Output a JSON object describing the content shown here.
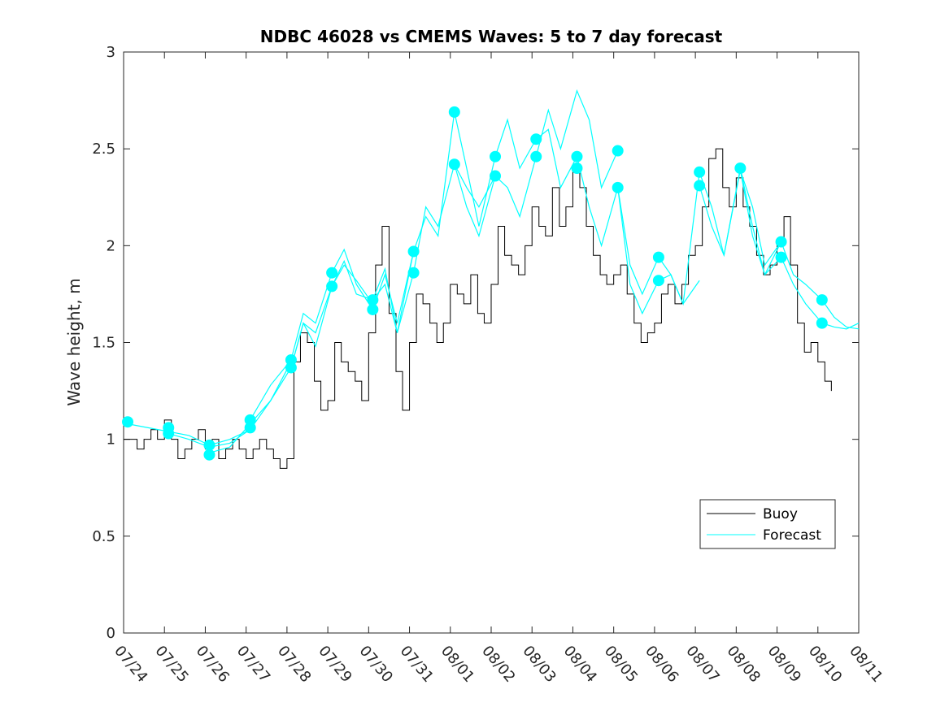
{
  "chart_data": {
    "type": "line",
    "title": "NDBC 46028 vs CMEMS Waves: 5 to 7 day forecast",
    "xlabel": "",
    "ylabel": "Wave height, m",
    "x_tick_labels": [
      "07/24",
      "07/25",
      "07/26",
      "07/27",
      "07/28",
      "07/29",
      "07/30",
      "07/31",
      "08/01",
      "08/02",
      "08/03",
      "08/04",
      "08/05",
      "08/06",
      "08/07",
      "08/08",
      "08/09",
      "08/10",
      "08/11"
    ],
    "x_tick_positions_days": [
      0,
      1,
      2,
      3,
      4,
      5,
      6,
      7,
      8,
      9,
      10,
      11,
      12,
      13,
      14,
      15,
      16,
      17,
      18
    ],
    "x_unit": "days since 07/24",
    "xlim": [
      0,
      18
    ],
    "ylim": [
      0,
      3
    ],
    "y_ticks": [
      0,
      0.5,
      1,
      1.5,
      2,
      2.5,
      3
    ],
    "y_tick_labels": [
      "0",
      "0.5",
      "1",
      "1.5",
      "2",
      "2.5",
      "3"
    ],
    "grid": false,
    "legend": {
      "placement": "bottom-right",
      "entries": [
        "Buoy",
        "Forecast"
      ]
    },
    "colors": {
      "buoy": "#000000",
      "forecast": "#00FFFF",
      "axis": "#262626"
    },
    "series": [
      {
        "name": "Buoy",
        "x": [
          0,
          0.17,
          0.33,
          0.5,
          0.67,
          0.83,
          1.0,
          1.17,
          1.33,
          1.5,
          1.67,
          1.83,
          2.0,
          2.17,
          2.33,
          2.5,
          2.67,
          2.83,
          3.0,
          3.17,
          3.33,
          3.5,
          3.67,
          3.83,
          4.0,
          4.17,
          4.33,
          4.5,
          4.67,
          4.83,
          5.0,
          5.17,
          5.33,
          5.5,
          5.67,
          5.83,
          6.0,
          6.17,
          6.33,
          6.5,
          6.67,
          6.83,
          7.0,
          7.17,
          7.33,
          7.5,
          7.67,
          7.83,
          8.0,
          8.17,
          8.33,
          8.5,
          8.67,
          8.83,
          9.0,
          9.17,
          9.33,
          9.5,
          9.67,
          9.83,
          10.0,
          10.17,
          10.33,
          10.5,
          10.67,
          10.83,
          11.0,
          11.17,
          11.33,
          11.5,
          11.67,
          11.83,
          12.0,
          12.17,
          12.33,
          12.5,
          12.67,
          12.83,
          13.0,
          13.17,
          13.33,
          13.5,
          13.67,
          13.83,
          14.0,
          14.17,
          14.33,
          14.5,
          14.67,
          14.83,
          15.0,
          15.17,
          15.33,
          15.5,
          15.67,
          15.83,
          16.0,
          16.17,
          16.33,
          16.5,
          16.67,
          16.83,
          17.0,
          17.17,
          17.33
        ],
        "values": [
          1.0,
          1.0,
          0.95,
          1.0,
          1.05,
          1.0,
          1.1,
          1.0,
          0.9,
          0.95,
          1.0,
          1.05,
          0.95,
          1.0,
          0.9,
          0.95,
          1.0,
          0.95,
          0.9,
          0.95,
          1.0,
          0.95,
          0.9,
          0.85,
          0.9,
          1.4,
          1.55,
          1.5,
          1.3,
          1.15,
          1.2,
          1.5,
          1.4,
          1.35,
          1.3,
          1.2,
          1.55,
          1.9,
          2.1,
          1.65,
          1.35,
          1.15,
          1.5,
          1.75,
          1.7,
          1.6,
          1.5,
          1.6,
          1.8,
          1.75,
          1.7,
          1.85,
          1.65,
          1.6,
          1.8,
          2.1,
          1.95,
          1.9,
          1.85,
          2.0,
          2.2,
          2.1,
          2.05,
          2.3,
          2.1,
          2.2,
          2.4,
          2.3,
          2.1,
          1.95,
          1.85,
          1.8,
          1.85,
          1.9,
          1.75,
          1.6,
          1.5,
          1.55,
          1.6,
          1.75,
          1.8,
          1.7,
          1.8,
          1.95,
          2.0,
          2.2,
          2.45,
          2.5,
          2.3,
          2.2,
          2.35,
          2.2,
          2.1,
          1.95,
          1.85,
          1.9,
          2.0,
          2.15,
          1.9,
          1.6,
          1.45,
          1.5,
          1.4,
          1.3,
          1.25
        ]
      },
      {
        "name": "Forecast",
        "runs": [
          {
            "x": [
              0.1,
              0.6,
              1.1,
              1.6,
              2.1,
              2.6,
              3.1
            ],
            "values": [
              1.08,
              1.06,
              1.04,
              1.02,
              0.97,
              1.0,
              1.05
            ]
          },
          {
            "x": [
              1.1,
              1.6,
              2.1,
              2.6,
              3.1,
              3.6,
              4.1
            ],
            "values": [
              1.03,
              1.0,
              0.96,
              0.98,
              1.05,
              1.2,
              1.4
            ]
          },
          {
            "x": [
              2.1,
              2.6,
              3.1,
              3.6,
              4.1,
              4.4,
              4.7,
              5.1,
              5.4,
              5.7,
              6.1
            ],
            "values": [
              0.93,
              0.96,
              1.08,
              1.2,
              1.37,
              1.6,
              1.55,
              1.79,
              1.9,
              1.82,
              1.7
            ]
          },
          {
            "x": [
              3.1,
              3.6,
              4.1,
              4.4,
              4.7,
              5.1,
              5.4,
              5.7,
              6.1,
              6.4,
              6.7,
              7.1
            ],
            "values": [
              1.1,
              1.28,
              1.41,
              1.65,
              1.6,
              1.86,
              1.98,
              1.8,
              1.67,
              1.85,
              1.6,
              1.97
            ]
          },
          {
            "x": [
              4.1,
              4.4,
              4.7,
              5.1,
              5.4,
              5.7,
              6.1,
              6.4,
              6.7,
              7.1,
              7.4,
              7.7,
              8.1,
              8.4,
              8.7,
              9.1
            ],
            "values": [
              1.37,
              1.6,
              1.48,
              1.79,
              1.92,
              1.75,
              1.72,
              1.88,
              1.55,
              1.86,
              2.2,
              2.1,
              2.42,
              2.3,
              2.2,
              2.36
            ]
          },
          {
            "x": [
              6.1,
              6.4,
              6.7,
              7.1,
              7.4,
              7.7,
              8.1,
              8.4,
              8.7,
              9.1,
              9.4,
              9.7,
              10.1,
              10.4,
              10.7,
              11.1
            ],
            "values": [
              1.72,
              1.8,
              1.55,
              1.97,
              2.15,
              2.05,
              2.69,
              2.4,
              2.1,
              2.46,
              2.65,
              2.4,
              2.55,
              2.6,
              2.3,
              2.46
            ]
          },
          {
            "x": [
              8.1,
              8.4,
              8.7,
              9.1,
              9.4,
              9.7,
              10.1,
              10.4,
              10.7,
              11.1,
              11.4,
              11.7,
              12.1
            ],
            "values": [
              2.42,
              2.2,
              2.05,
              2.36,
              2.3,
              2.15,
              2.46,
              2.7,
              2.5,
              2.8,
              2.65,
              2.3,
              2.49
            ]
          },
          {
            "x": [
              11.1,
              11.4,
              11.7,
              12.1,
              12.4,
              12.7,
              13.1,
              13.4,
              13.7,
              14.1
            ],
            "values": [
              2.46,
              2.2,
              2.0,
              2.3,
              1.9,
              1.75,
              1.94,
              1.85,
              1.7,
              1.82
            ]
          },
          {
            "x": [
              12.1,
              12.4,
              12.7,
              13.1,
              13.4,
              13.7,
              14.1,
              14.4,
              14.7,
              15.1,
              15.4,
              15.7,
              16.1
            ],
            "values": [
              2.3,
              1.8,
              1.65,
              1.82,
              1.85,
              1.7,
              2.38,
              2.2,
              1.95,
              2.4,
              2.1,
              1.85,
              2.02
            ]
          },
          {
            "x": [
              14.1,
              14.4,
              14.7,
              15.1,
              15.4,
              15.7,
              16.1,
              16.4,
              16.7,
              17.1,
              17.4,
              17.7,
              18.0
            ],
            "values": [
              2.31,
              2.1,
              1.95,
              2.39,
              2.05,
              1.85,
              1.94,
              1.8,
              1.7,
              1.6,
              1.58,
              1.57,
              1.6
            ]
          },
          {
            "x": [
              15.1,
              15.4,
              15.7,
              16.1,
              16.4,
              16.7,
              17.1,
              17.4,
              17.7,
              18.0
            ],
            "values": [
              2.39,
              2.2,
              1.9,
              2.02,
              1.85,
              1.8,
              1.72,
              1.63,
              1.58,
              1.57
            ]
          }
        ],
        "markers": [
          [
            0.1,
            1.09
          ],
          [
            1.1,
            1.06
          ],
          [
            1.1,
            1.03
          ],
          [
            2.1,
            0.97
          ],
          [
            2.1,
            0.92
          ],
          [
            3.1,
            1.1
          ],
          [
            3.1,
            1.06
          ],
          [
            4.1,
            1.41
          ],
          [
            4.1,
            1.37
          ],
          [
            5.1,
            1.86
          ],
          [
            5.1,
            1.79
          ],
          [
            6.1,
            1.72
          ],
          [
            6.1,
            1.67
          ],
          [
            7.1,
            1.97
          ],
          [
            7.1,
            1.86
          ],
          [
            8.1,
            2.69
          ],
          [
            8.1,
            2.42
          ],
          [
            9.1,
            2.46
          ],
          [
            9.1,
            2.36
          ],
          [
            10.1,
            2.55
          ],
          [
            10.1,
            2.46
          ],
          [
            11.1,
            2.46
          ],
          [
            11.1,
            2.4
          ],
          [
            12.1,
            2.49
          ],
          [
            12.1,
            2.3
          ],
          [
            13.1,
            1.94
          ],
          [
            13.1,
            1.82
          ],
          [
            14.1,
            2.38
          ],
          [
            14.1,
            2.31
          ],
          [
            15.1,
            2.4
          ],
          [
            16.1,
            2.02
          ],
          [
            16.1,
            1.94
          ],
          [
            17.1,
            1.72
          ],
          [
            17.1,
            1.6
          ]
        ]
      }
    ]
  }
}
